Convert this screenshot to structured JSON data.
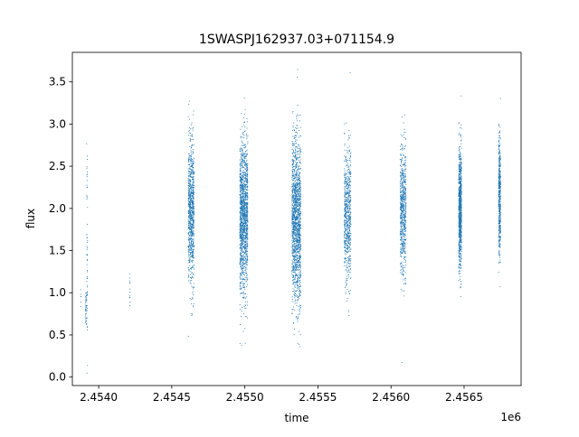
{
  "chart_data": {
    "type": "scatter",
    "title": "1SWASPJ162937.03+071154.9",
    "xlabel": "time",
    "ylabel": "flux",
    "x_offset_label": "1e6",
    "xlim": [
      2453820,
      2456890
    ],
    "ylim": [
      -0.1,
      3.85
    ],
    "x_ticks": [
      2453.5,
      2454.0,
      2454.5,
      2455.0,
      2455.5,
      2456.0,
      2456.5
    ],
    "x_tick_labels": [
      "2.4540",
      "2.4545",
      "2.4550",
      "2.4555",
      "2.4560",
      "2.4565"
    ],
    "x_tick_values": [
      2454000,
      2454500,
      2455000,
      2455500,
      2456000,
      2456500
    ],
    "y_tick_values": [
      0.0,
      0.5,
      1.0,
      1.5,
      2.0,
      2.5,
      3.0,
      3.5
    ],
    "y_tick_labels": [
      "0.0",
      "0.5",
      "1.0",
      "1.5",
      "2.0",
      "2.5",
      "3.0",
      "3.5"
    ],
    "grid": false,
    "color": "#1f77b4",
    "series": [
      {
        "clusters": [
          {
            "x_center": 2453875,
            "x_width": 4,
            "y_mean": 1.0,
            "y_spread": 0.1,
            "n": 6
          },
          {
            "x_center": 2453910,
            "x_width": 6,
            "y_mean": 0.85,
            "y_spread": 0.12,
            "n": 40
          },
          {
            "x_center": 2453918,
            "x_width": 6,
            "y_mean": 1.5,
            "y_spread": 0.6,
            "n": 60
          },
          {
            "x_center": 2454210,
            "x_width": 3,
            "y_mean": 1.0,
            "y_spread": 0.12,
            "n": 12
          },
          {
            "x_center": 2454630,
            "x_width": 40,
            "y_mean": 1.95,
            "y_spread": 0.42,
            "n": 900
          },
          {
            "x_center": 2454990,
            "x_width": 55,
            "y_mean": 1.9,
            "y_spread": 0.45,
            "n": 1500
          },
          {
            "x_center": 2455350,
            "x_width": 60,
            "y_mean": 1.85,
            "y_spread": 0.48,
            "n": 1600
          },
          {
            "x_center": 2455700,
            "x_width": 45,
            "y_mean": 1.9,
            "y_spread": 0.4,
            "n": 700
          },
          {
            "x_center": 2456080,
            "x_width": 40,
            "y_mean": 2.0,
            "y_spread": 0.38,
            "n": 700
          },
          {
            "x_center": 2456470,
            "x_width": 20,
            "y_mean": 2.0,
            "y_spread": 0.35,
            "n": 900
          },
          {
            "x_center": 2456740,
            "x_width": 14,
            "y_mean": 2.15,
            "y_spread": 0.35,
            "n": 500
          }
        ]
      }
    ]
  }
}
